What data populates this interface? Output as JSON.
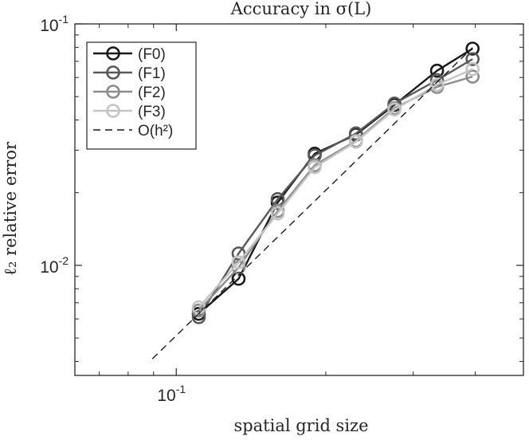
{
  "chart_data": {
    "type": "line",
    "title": "Accuracy in σ(L)",
    "xlabel": "spatial grid size",
    "ylabel": "ℓ₂ relative error",
    "xscale": "log",
    "yscale": "log",
    "xlim": [
      0.0625,
      0.5
    ],
    "ylim": [
      0.0035,
      0.1
    ],
    "x_ticks": [
      {
        "value": 0.1,
        "label": "10",
        "exp": "-1"
      }
    ],
    "y_ticks": [
      {
        "value": 0.1,
        "label": "10",
        "exp": "-1"
      },
      {
        "value": 0.01,
        "label": "10",
        "exp": "-2"
      }
    ],
    "legend_position": "top-left",
    "series": [
      {
        "name": "(F0)",
        "color": "#1a1a1a",
        "style": "solid",
        "marker": "circle",
        "x": [
          0.111,
          0.1335,
          0.16,
          0.19,
          0.23,
          0.275,
          0.335,
          0.395
        ],
        "y": [
          0.0063,
          0.0088,
          0.0182,
          0.029,
          0.0348,
          0.0462,
          0.064,
          0.079
        ]
      },
      {
        "name": "(F1)",
        "color": "#595959",
        "style": "solid",
        "marker": "circle",
        "x": [
          0.111,
          0.1335,
          0.16,
          0.19,
          0.23,
          0.275,
          0.335,
          0.395
        ],
        "y": [
          0.0061,
          0.0112,
          0.0188,
          0.0285,
          0.0352,
          0.0468,
          0.0585,
          0.0715
        ]
      },
      {
        "name": "(F2)",
        "color": "#8c8c8c",
        "style": "solid",
        "marker": "circle",
        "x": [
          0.111,
          0.1335,
          0.16,
          0.19,
          0.23,
          0.275,
          0.335,
          0.395
        ],
        "y": [
          0.0065,
          0.0098,
          0.0168,
          0.026,
          0.0328,
          0.0448,
          0.0548,
          0.0605
        ]
      },
      {
        "name": "(F3)",
        "color": "#c4c4c4",
        "style": "solid",
        "marker": "circle",
        "x": [
          0.111,
          0.1335,
          0.16,
          0.19,
          0.23,
          0.275,
          0.335,
          0.395
        ],
        "y": [
          0.0067,
          0.0103,
          0.0164,
          0.0255,
          0.0325,
          0.0442,
          0.056,
          0.065
        ]
      },
      {
        "name": "O(h²)",
        "color": "#1a1a1a",
        "style": "dashed",
        "marker": "none",
        "x": [
          0.0895,
          0.395
        ],
        "y": [
          0.0041,
          0.0798
        ]
      }
    ]
  }
}
